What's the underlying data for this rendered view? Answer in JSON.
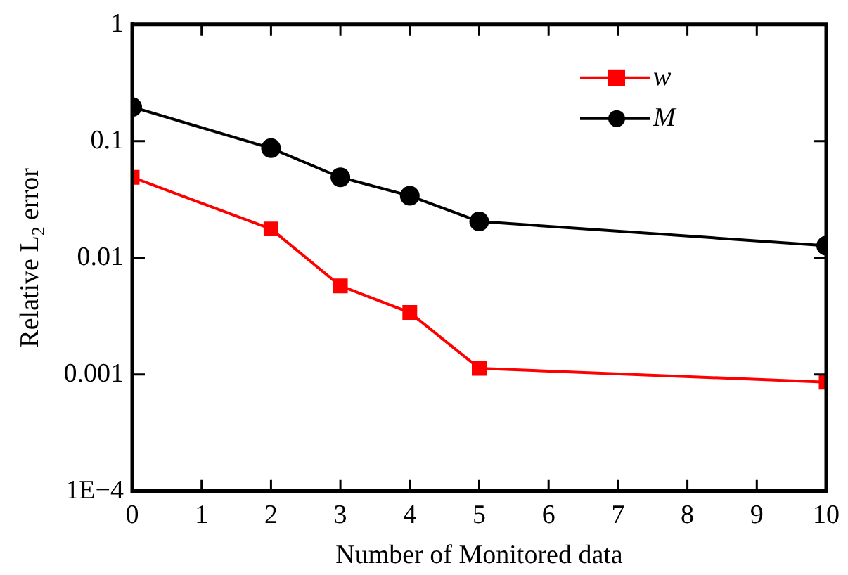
{
  "chart_data": {
    "type": "line",
    "xlabel": "Number of Monitored data",
    "ylabel": "Relative L$_{2}$ error",
    "x": [
      0,
      2,
      3,
      4,
      5,
      10
    ],
    "series": [
      {
        "name": "w",
        "color": "#ff0000",
        "marker": "square",
        "values": [
          0.049,
          0.0177,
          0.00575,
          0.0034,
          0.00113,
          0.00086
        ]
      },
      {
        "name": "M",
        "color": "#000000",
        "marker": "circle",
        "values": [
          0.196,
          0.087,
          0.049,
          0.034,
          0.0205,
          0.0127
        ]
      }
    ],
    "xlim": [
      0,
      10
    ],
    "xticks": [
      0,
      1,
      2,
      3,
      4,
      5,
      6,
      7,
      8,
      9,
      10
    ],
    "ylim": [
      0.0001,
      1
    ],
    "yticks": [
      {
        "value": 0.0001,
        "label": "1E−4"
      },
      0.001,
      0.01,
      0.1,
      1
    ],
    "log": "y",
    "grid": false,
    "legend": "top right"
  }
}
